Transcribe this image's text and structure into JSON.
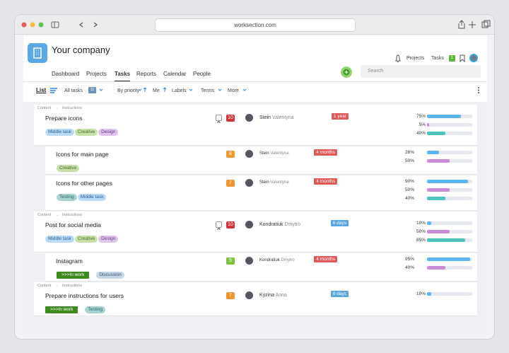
{
  "browser": {
    "url": "worksection.com"
  },
  "header": {
    "company": "Your company",
    "nav": [
      "Dashboard",
      "Projects",
      "Tasks",
      "Reports",
      "Calendar",
      "People"
    ],
    "projects": "Projects",
    "tasks": "Tasks",
    "tasks_badge": "1",
    "search": "Search"
  },
  "toolbar": {
    "list": "List",
    "all_tasks": "All tasks",
    "count": "11",
    "by_priority": "By priority",
    "me": "Me",
    "labels": "Labels",
    "terms": "Terms",
    "more": "More"
  },
  "tasks": [
    {
      "breadcrumb": [
        "Content",
        "Instructions"
      ],
      "title": "Prepare icons",
      "subtask": false,
      "collapse": true,
      "tags": [
        {
          "text": "Middle task",
          "bg": "#b9daf7",
          "fg": "#2a5f8f"
        },
        {
          "text": "Creative",
          "bg": "#c6e0a8",
          "fg": "#4a6b2a"
        },
        {
          "text": "Design",
          "bg": "#dcc4ea",
          "fg": "#6b3c80"
        }
      ],
      "priority": {
        "text": "10",
        "color": "#d6333b"
      },
      "person": {
        "first": "Stein",
        "last": "Valentyna"
      },
      "deadline": {
        "text": "1 year",
        "color": "#e05a5a"
      },
      "progress": [
        {
          "value": 75,
          "label": "75%",
          "color": "#5bb5f0"
        },
        {
          "value": 5,
          "label": "5%",
          "color": "#c98bd6"
        },
        {
          "value": 40,
          "label": "40%",
          "color": "#4dc4c0"
        }
      ]
    },
    {
      "title": "Icons for main page",
      "subtask": true,
      "collapse": false,
      "tags": [
        {
          "text": "Creative",
          "bg": "#c6e0a8",
          "fg": "#4a6b2a"
        }
      ],
      "priority": {
        "text": "8",
        "color": "#f0962e"
      },
      "person": {
        "first": "Stein",
        "last": "Valentyna"
      },
      "deadline": {
        "text": "4 months",
        "color": "#e05a5a"
      },
      "progress": [
        {
          "value": 26,
          "label": "26%",
          "color": "#5bb5f0"
        },
        {
          "value": 50,
          "label": "50%",
          "color": "#c98bd6"
        }
      ]
    },
    {
      "title": "Icons for other pages",
      "subtask": true,
      "collapse": false,
      "tags": [
        {
          "text": "Testing",
          "bg": "#a9d3d3",
          "fg": "#2f6464"
        },
        {
          "text": "Middle task",
          "bg": "#b9daf7",
          "fg": "#2a5f8f"
        }
      ],
      "priority": {
        "text": "7",
        "color": "#f0962e"
      },
      "person": {
        "first": "Stein",
        "last": "Valentyna"
      },
      "deadline": {
        "text": "4 months",
        "color": "#e05a5a"
      },
      "progress": [
        {
          "value": 90,
          "label": "90%",
          "color": "#5bb5f0"
        },
        {
          "value": 50,
          "label": "50%",
          "color": "#c98bd6"
        },
        {
          "value": 40,
          "label": "40%",
          "color": "#4dc4c0"
        }
      ]
    },
    {
      "breadcrumb": [
        "Content",
        "Instructions"
      ],
      "title": "Post for social media",
      "subtask": false,
      "collapse": true,
      "tags": [
        {
          "text": "Middle task",
          "bg": "#b9daf7",
          "fg": "#2a5f8f"
        },
        {
          "text": "Creative",
          "bg": "#c6e0a8",
          "fg": "#4a6b2a"
        },
        {
          "text": "Design",
          "bg": "#dcc4ea",
          "fg": "#6b3c80"
        }
      ],
      "priority": {
        "text": "10",
        "color": "#d6333b"
      },
      "person": {
        "first": "Kondratiuk",
        "last": "Dmytro"
      },
      "deadline": {
        "text": "6 days",
        "color": "#5aa6e0"
      },
      "progress": [
        {
          "value": 10,
          "label": "10%",
          "color": "#5bb5f0"
        },
        {
          "value": 50,
          "label": "50%",
          "color": "#c98bd6"
        },
        {
          "value": 85,
          "label": "85%",
          "color": "#4dc4c0"
        }
      ]
    },
    {
      "title": "Instagram",
      "subtask": true,
      "collapse": false,
      "tags": [
        {
          "text": ">>>In work",
          "bg": "#3d8b1f",
          "fg": "#ffffff"
        },
        {
          "text": "Discussion",
          "bg": "#c5d6e5",
          "fg": "#3b5470"
        }
      ],
      "priority": {
        "text": "5",
        "color": "#7cc142"
      },
      "person": {
        "first": "Kondratiuk",
        "last": "Dmytro"
      },
      "deadline": {
        "text": "4 months",
        "color": "#e05a5a"
      },
      "progress": [
        {
          "value": 95,
          "label": "95%",
          "color": "#5bb5f0"
        },
        {
          "value": 40,
          "label": "40%",
          "color": "#c98bd6"
        }
      ]
    },
    {
      "breadcrumb": [
        "Content",
        "Instructions"
      ],
      "title": "Prepare instructions for users",
      "subtask": false,
      "collapse": false,
      "tags": [
        {
          "text": ">>>In work",
          "bg": "#3d8b1f",
          "fg": "#ffffff"
        },
        {
          "text": "Testing",
          "bg": "#a9d3d3",
          "fg": "#2f6464"
        }
      ],
      "priority": {
        "text": "7",
        "color": "#f0962e"
      },
      "person": {
        "first": "Kyzina",
        "last": "Anna"
      },
      "deadline": {
        "text": "6 days",
        "color": "#5aa6e0"
      },
      "progress": [
        {
          "value": 10,
          "label": "10%",
          "color": "#5bb5f0"
        }
      ]
    }
  ]
}
